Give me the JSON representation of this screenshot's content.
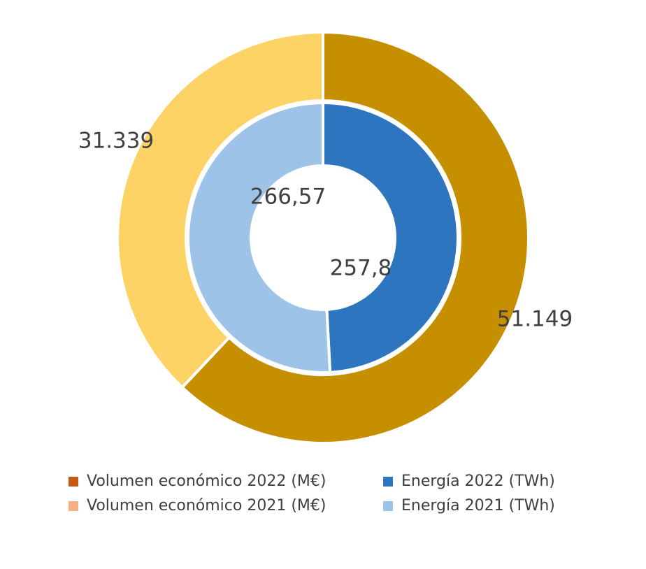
{
  "chart_data": {
    "type": "pie",
    "title": "",
    "rings": [
      {
        "ring": "outer",
        "slices": [
          {
            "series": "Volumen económico 2022 (M€)",
            "value": 51149,
            "label": "51.149",
            "color": "#c58f00"
          },
          {
            "series": "Volumen económico 2021 (M€)",
            "value": 31339,
            "label": "31.339",
            "color": "#fdd366"
          }
        ]
      },
      {
        "ring": "inner",
        "slices": [
          {
            "series": "Energía 2022 (TWh)",
            "value": 257.8,
            "label": "257,8",
            "color": "#2e75c0"
          },
          {
            "series": "Energía 2021 (TWh)",
            "value": 266.57,
            "label": "266,57",
            "color": "#9dc3e9"
          }
        ]
      }
    ],
    "legend": {
      "placement": "bottom",
      "items": [
        {
          "label": "Volumen económico 2022 (M€)",
          "color": "#c55a11"
        },
        {
          "label": "Energía 2022 (TWh)",
          "color": "#2e75c0"
        },
        {
          "label": "Volumen económico 2021 (M€)",
          "color": "#f4b183"
        },
        {
          "label": "Energía 2021 (TWh)",
          "color": "#9dc3e9"
        }
      ]
    }
  }
}
